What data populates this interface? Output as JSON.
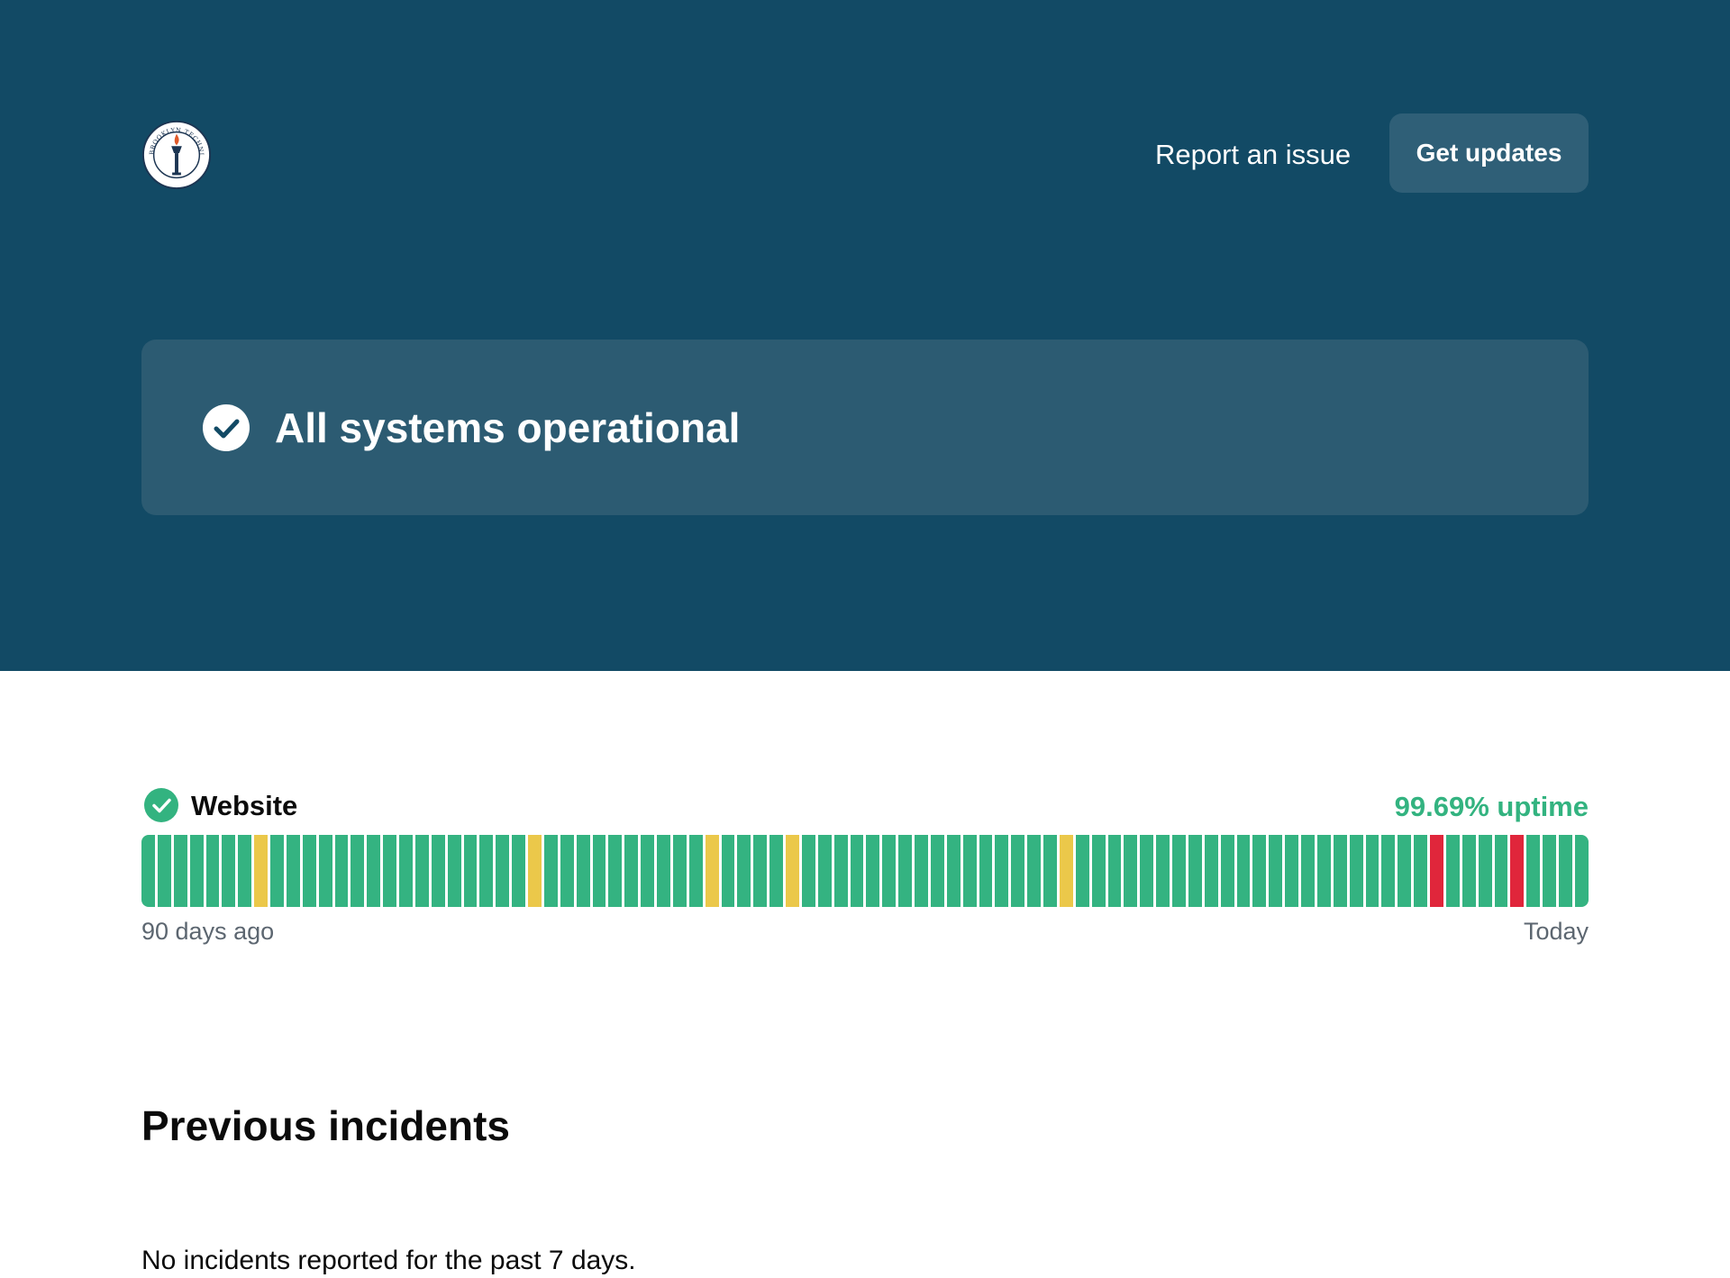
{
  "header": {
    "logo_text": "BROOKLYN TECHNICAL HIGH SCHOOL",
    "report_link": "Report an issue",
    "get_updates": "Get updates"
  },
  "status": {
    "text": "All systems operational"
  },
  "components": [
    {
      "name": "Website",
      "uptime": "99.69% uptime",
      "range_start": "90 days ago",
      "range_end": "Today",
      "colors": {
        "operational": "#34b381",
        "degraded": "#ebc84a",
        "outage": "#e0263b"
      },
      "days": [
        "operational",
        "operational",
        "operational",
        "operational",
        "operational",
        "operational",
        "operational",
        "degraded",
        "operational",
        "operational",
        "operational",
        "operational",
        "operational",
        "operational",
        "operational",
        "operational",
        "operational",
        "operational",
        "operational",
        "operational",
        "operational",
        "operational",
        "operational",
        "operational",
        "degraded",
        "operational",
        "operational",
        "operational",
        "operational",
        "operational",
        "operational",
        "operational",
        "operational",
        "operational",
        "operational",
        "degraded",
        "operational",
        "operational",
        "operational",
        "operational",
        "degraded",
        "operational",
        "operational",
        "operational",
        "operational",
        "operational",
        "operational",
        "operational",
        "operational",
        "operational",
        "operational",
        "operational",
        "operational",
        "operational",
        "operational",
        "operational",
        "operational",
        "degraded",
        "operational",
        "operational",
        "operational",
        "operational",
        "operational",
        "operational",
        "operational",
        "operational",
        "operational",
        "operational",
        "operational",
        "operational",
        "operational",
        "operational",
        "operational",
        "operational",
        "operational",
        "operational",
        "operational",
        "operational",
        "operational",
        "operational",
        "outage",
        "operational",
        "operational",
        "operational",
        "operational",
        "outage",
        "operational",
        "operational",
        "operational",
        "operational"
      ]
    }
  ],
  "incidents": {
    "title": "Previous incidents",
    "empty_text": "No incidents reported for the past 7 days."
  }
}
